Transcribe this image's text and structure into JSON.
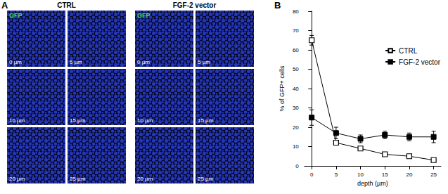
{
  "panel_a": {
    "label": "A",
    "groups": [
      {
        "title": "CTRL",
        "images": [
          {
            "label": "0 µm",
            "channel": "GFP"
          },
          {
            "label": "5 µm"
          },
          {
            "label": "10 µm"
          },
          {
            "label": "15 µm"
          },
          {
            "label": "20 µm"
          },
          {
            "label": "25 µm"
          }
        ]
      },
      {
        "title": "FGF-2 vector",
        "images": [
          {
            "label": "0 µm",
            "channel": "GFP"
          },
          {
            "label": "5 µm"
          },
          {
            "label": "10 µm"
          },
          {
            "label": "15 µm"
          },
          {
            "label": "20 µm"
          },
          {
            "label": "25 µm"
          }
        ]
      }
    ]
  },
  "panel_b_label": "B",
  "chart_data": {
    "type": "line",
    "x": [
      0,
      5,
      10,
      15,
      20,
      25
    ],
    "xlim": [
      -1.5,
      26.5
    ],
    "xticks": [
      0,
      5,
      10,
      15,
      20,
      25
    ],
    "ylim": [
      0,
      80
    ],
    "yticks": [
      0,
      10,
      20,
      30,
      40,
      50,
      60,
      70,
      80
    ],
    "x_label": "depth (µm)",
    "y_label": "% of GFP+ cells",
    "grid": false,
    "legend": "top-right",
    "series": [
      {
        "name": "CTRL",
        "color": "#000000",
        "marker": "open_square",
        "values": [
          65,
          12,
          9,
          6,
          5,
          3
        ],
        "errors": [
          2.5,
          1,
          1,
          0.8,
          0.8,
          0.6
        ]
      },
      {
        "name": "FGF-2 vector",
        "color": "#000000",
        "marker": "filled_square",
        "values": [
          25,
          17,
          14,
          16,
          15,
          15
        ],
        "errors": [
          4,
          3,
          2,
          2,
          2,
          3
        ]
      }
    ]
  }
}
